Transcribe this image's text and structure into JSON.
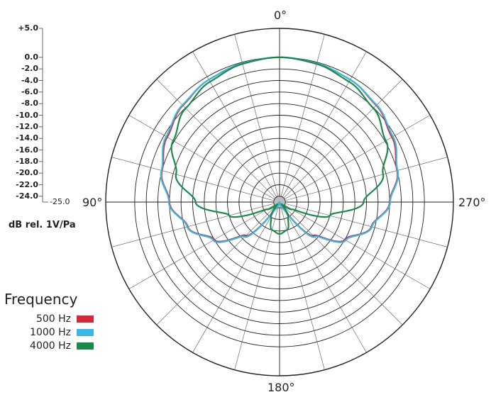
{
  "chart_data": {
    "type": "polar",
    "title": "",
    "unit_label": "dB rel. 1V/Pa",
    "radial_scale": {
      "top_label": "+5.0",
      "labels": [
        "0.0",
        "-2.0",
        "-4.0",
        "-6.0",
        "-8.0",
        "-10.0",
        "-12.0",
        "-14.0",
        "-16.0",
        "-18.0",
        "-20.0",
        "-22.0",
        "-24.0"
      ],
      "bottom_label": "-25.0",
      "range": [
        -25,
        5
      ]
    },
    "angle_labels": {
      "top": "0°",
      "left": "90°",
      "right": "270°",
      "bottom": "180°"
    },
    "grid": true,
    "legend": {
      "title": "Frequency",
      "placement": "bottom-left",
      "items": [
        {
          "label": "500 Hz",
          "color": "#d42a35"
        },
        {
          "label": "1000 Hz",
          "color": "#3bb8e2"
        },
        {
          "label": "4000 Hz",
          "color": "#1a8a4c"
        }
      ]
    },
    "series": [
      {
        "name": "500 Hz",
        "color": "#d42a35",
        "angles_deg": [
          0,
          15,
          30,
          45,
          60,
          75,
          90,
          105,
          120,
          135,
          150,
          165,
          180
        ],
        "values_db": [
          0.0,
          -0.2,
          -0.6,
          -1.4,
          -2.6,
          -4.0,
          -6.0,
          -8.6,
          -12.0,
          -16.8,
          -24.0,
          -25.0,
          -24.5
        ]
      },
      {
        "name": "1000 Hz",
        "color": "#3bb8e2",
        "angles_deg": [
          0,
          15,
          30,
          45,
          60,
          75,
          90,
          105,
          120,
          135,
          150,
          165,
          180
        ],
        "values_db": [
          0.0,
          -0.2,
          -0.6,
          -1.3,
          -2.4,
          -3.9,
          -5.9,
          -8.5,
          -11.8,
          -16.5,
          -23.5,
          -25.0,
          -24.5
        ]
      },
      {
        "name": "4000 Hz",
        "color": "#1a8a4c",
        "angles_deg": [
          0,
          15,
          30,
          45,
          60,
          75,
          90,
          105,
          120,
          135,
          150,
          165,
          180
        ],
        "values_db": [
          0.0,
          -0.3,
          -1.0,
          -2.1,
          -3.8,
          -6.5,
          -10.5,
          -16.0,
          -22.5,
          -24.5,
          -22.0,
          -20.0,
          -19.5
        ]
      }
    ]
  }
}
